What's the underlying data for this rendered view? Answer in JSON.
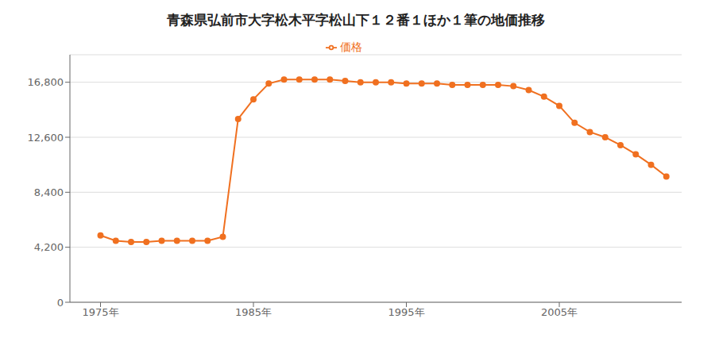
{
  "chart_data": {
    "type": "line",
    "title": "青森県弘前市大字松木平字松山下１２番１ほか１筆の地価推移",
    "x": [
      1975,
      1976,
      1977,
      1978,
      1979,
      1980,
      1981,
      1982,
      1983,
      1984,
      1985,
      1986,
      1987,
      1988,
      1989,
      1990,
      1991,
      1992,
      1993,
      1994,
      1995,
      1996,
      1997,
      1998,
      1999,
      2000,
      2001,
      2002,
      2003,
      2004,
      2005,
      2006,
      2007,
      2008,
      2009,
      2010,
      2011,
      2012
    ],
    "series": [
      {
        "name": "価格",
        "color": "#f07020",
        "marker": "circle",
        "values": [
          5100,
          4700,
          4600,
          4600,
          4700,
          4700,
          4700,
          4700,
          5000,
          14000,
          15500,
          16700,
          17000,
          17000,
          17000,
          17000,
          16900,
          16800,
          16800,
          16800,
          16700,
          16700,
          16700,
          16600,
          16600,
          16600,
          16600,
          16500,
          16200,
          15700,
          15000,
          13700,
          13000,
          12600,
          12000,
          11300,
          10500,
          9600
        ]
      }
    ],
    "xlim": [
      1973,
      2013
    ],
    "xticks": [
      {
        "value": 1975,
        "label": "1975年"
      },
      {
        "value": 1985,
        "label": "1985年"
      },
      {
        "value": 1995,
        "label": "1995年"
      },
      {
        "value": 2005,
        "label": "2005年"
      }
    ],
    "ylim": [
      0,
      18900
    ],
    "yticks": [
      0,
      {
        "value": 4200,
        "label": "4,200"
      },
      {
        "value": 8400,
        "label": "8,400"
      },
      {
        "value": 12600,
        "label": "12,600"
      },
      {
        "value": 16800,
        "label": "16,800"
      }
    ],
    "grid": "y",
    "legend": "top"
  }
}
